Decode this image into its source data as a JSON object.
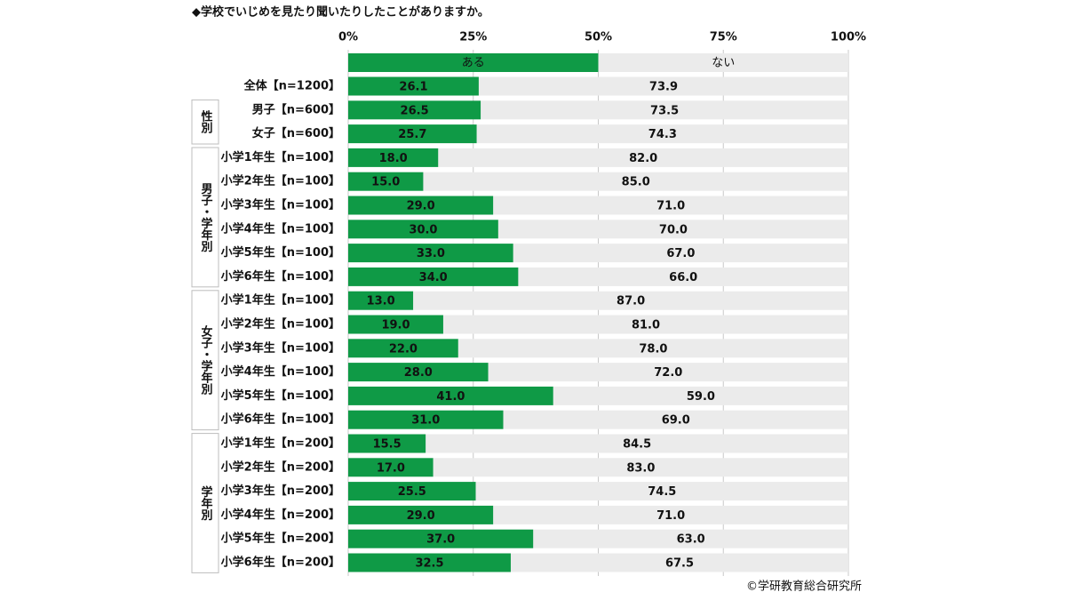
{
  "chart_data": {
    "type": "stacked-bar-horizontal",
    "title": "◆学校でいじめを見たり聞いたりしたことがありますか。",
    "source": "©学研教育総合研究所",
    "xlim": [
      0,
      100
    ],
    "xticks": [
      {
        "value": 0,
        "label": "0%"
      },
      {
        "value": 25,
        "label": "25%"
      },
      {
        "value": 50,
        "label": "50%"
      },
      {
        "value": 75,
        "label": "75%"
      },
      {
        "value": 100,
        "label": "100%"
      }
    ],
    "grid": true,
    "groups": [
      {
        "label": null,
        "categories": [
          "全体【n=1200】"
        ]
      },
      {
        "label": "性別",
        "categories": [
          "男子【n=600】",
          "女子【n=600】"
        ]
      },
      {
        "label": "男子・学年別",
        "categories": [
          "小学1年生【n=100】",
          "小学2年生【n=100】",
          "小学3年生【n=100】",
          "小学4年生【n=100】",
          "小学5年生【n=100】",
          "小学6年生【n=100】"
        ]
      },
      {
        "label": "女子・学年別",
        "categories": [
          "小学1年生【n=100】",
          "小学2年生【n=100】",
          "小学3年生【n=100】",
          "小学4年生【n=100】",
          "小学5年生【n=100】",
          "小学6年生【n=100】"
        ]
      },
      {
        "label": "学年別",
        "categories": [
          "小学1年生【n=200】",
          "小学2年生【n=200】",
          "小学3年生【n=200】",
          "小学4年生【n=200】",
          "小学5年生【n=200】",
          "小学6年生【n=200】"
        ]
      }
    ],
    "series": [
      {
        "name": "ある",
        "color": "#0f9a46",
        "label_color": "#ffffff",
        "values": [
          26.1,
          26.5,
          25.7,
          18,
          15,
          29,
          30,
          33,
          34,
          13,
          19,
          22,
          28,
          41,
          31,
          15.5,
          17,
          25.5,
          29,
          37,
          32.5
        ],
        "value_labels": [
          "26.1",
          "26.5",
          "25.7",
          "18.0",
          "15.0",
          "29.0",
          "30.0",
          "33.0",
          "34.0",
          "13.0",
          "19.0",
          "22.0",
          "28.0",
          "41.0",
          "31.0",
          "15.5",
          "17.0",
          "25.5",
          "29.0",
          "37.0",
          "32.5"
        ]
      },
      {
        "name": "ない",
        "color": "#ebebeb",
        "label_color": "#111111",
        "values": [
          73.9,
          73.5,
          74.3,
          82,
          85,
          71,
          70,
          67,
          66,
          87,
          81,
          78,
          72,
          59,
          69,
          84.5,
          83,
          74.5,
          71,
          63,
          67.5
        ],
        "value_labels": [
          "73.9",
          "73.5",
          "74.3",
          "82.0",
          "85.0",
          "71.0",
          "70.0",
          "67.0",
          "66.0",
          "87.0",
          "81.0",
          "78.0",
          "72.0",
          "59.0",
          "69.0",
          "84.5",
          "83.0",
          "74.5",
          "71.0",
          "63.0",
          "67.5"
        ]
      }
    ]
  }
}
